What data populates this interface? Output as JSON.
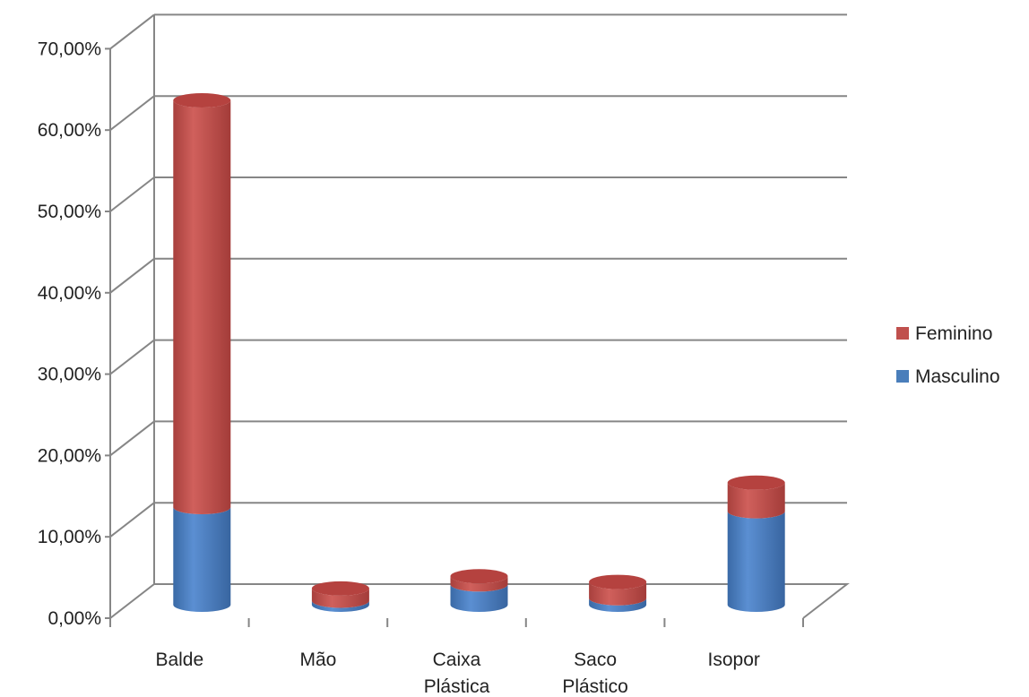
{
  "chart_data": {
    "type": "bar",
    "stacked": true,
    "style": "3d-cylinder",
    "categories": [
      [
        "Balde"
      ],
      [
        "Mão"
      ],
      [
        "Caixa",
        "Plástica"
      ],
      [
        "Saco",
        "Plástico"
      ],
      [
        "Isopor"
      ]
    ],
    "series": [
      {
        "name": "Masculino",
        "color": "#4a7ebb",
        "values": [
          12.0,
          0.5,
          2.5,
          0.8,
          11.5
        ]
      },
      {
        "name": "Feminino",
        "color": "#c0504d",
        "values": [
          50.0,
          1.5,
          1.0,
          2.0,
          3.5
        ]
      }
    ],
    "ylim": [
      0,
      70
    ],
    "yticks": [
      "0,00%",
      "10,00%",
      "20,00%",
      "30,00%",
      "40,00%",
      "50,00%",
      "60,00%",
      "70,00%"
    ],
    "grid": true,
    "legend_position": "right"
  }
}
